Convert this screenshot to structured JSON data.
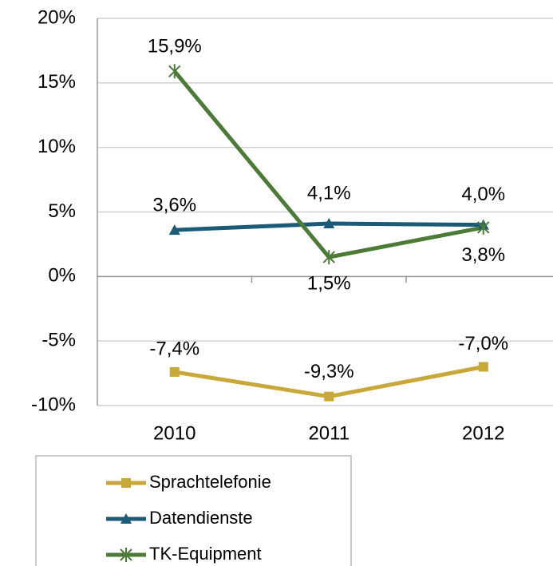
{
  "chart_data": {
    "type": "line",
    "categories": [
      "2010",
      "2011",
      "2012"
    ],
    "series": [
      {
        "name": "Sprachtelefonie",
        "color": "#c9a83a",
        "values": [
          -7.4,
          -9.3,
          -7.0
        ],
        "value_labels": [
          "-7,4%",
          "-9,3%",
          "-7,0%"
        ]
      },
      {
        "name": "Datendienste",
        "color": "#1b5b78",
        "values": [
          3.6,
          4.1,
          4.0
        ],
        "value_labels": [
          "3,6%",
          "4,1%",
          "4,0%"
        ]
      },
      {
        "name": "TK-Equipment",
        "color": "#4b7b37",
        "values": [
          15.9,
          1.5,
          3.8
        ],
        "value_labels": [
          "15,9%",
          "1,5%",
          "3,8%"
        ]
      }
    ],
    "ylim": [
      -10,
      20
    ],
    "yticks": [
      {
        "value": -10,
        "label": "-10%"
      },
      {
        "value": -5,
        "label": "-5%"
      },
      {
        "value": 0,
        "label": "0%"
      },
      {
        "value": 5,
        "label": "5%"
      },
      {
        "value": 10,
        "label": "10%"
      },
      {
        "value": 15,
        "label": "15%"
      },
      {
        "value": 20,
        "label": "20%"
      }
    ],
    "grid": true
  }
}
